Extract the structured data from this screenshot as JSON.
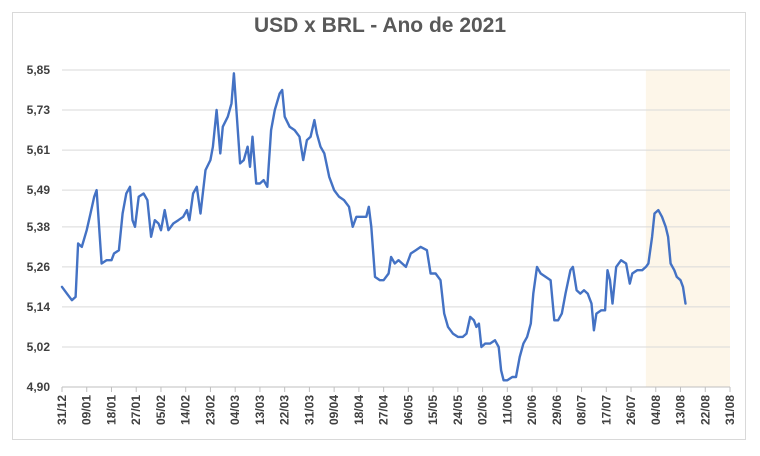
{
  "chart_data": {
    "type": "line",
    "title": "USD x BRL - Ano de 2021",
    "xlabel": "",
    "ylabel": "",
    "ylim": [
      4.9,
      5.85
    ],
    "yticks": [
      "4,90",
      "5,02",
      "5,14",
      "5,26",
      "5,38",
      "5,49",
      "5,61",
      "5,73",
      "5,85"
    ],
    "ytick_values": [
      4.9,
      5.02,
      5.14,
      5.26,
      5.38,
      5.49,
      5.61,
      5.73,
      5.85
    ],
    "xticks": [
      "31/12",
      "09/01",
      "18/01",
      "27/01",
      "05/02",
      "14/02",
      "23/02",
      "04/03",
      "13/03",
      "22/03",
      "31/03",
      "09/04",
      "18/04",
      "27/04",
      "06/05",
      "15/05",
      "24/05",
      "02/06",
      "11/06",
      "20/06",
      "29/06",
      "08/07",
      "17/07",
      "26/07",
      "04/08",
      "13/08",
      "22/08",
      "31/08"
    ],
    "grid": true,
    "highlight": {
      "from_tick_index": 23.6,
      "to_tick_index": 27,
      "color": "#fdf6e9"
    },
    "series": [
      {
        "color": "#4472c4",
        "points": [
          [
            0,
            5.2
          ],
          [
            0.2,
            5.18
          ],
          [
            0.4,
            5.16
          ],
          [
            0.55,
            5.17
          ],
          [
            0.65,
            5.33
          ],
          [
            0.8,
            5.32
          ],
          [
            1,
            5.37
          ],
          [
            1.15,
            5.42
          ],
          [
            1.3,
            5.47
          ],
          [
            1.4,
            5.49
          ],
          [
            1.5,
            5.38
          ],
          [
            1.6,
            5.27
          ],
          [
            1.8,
            5.28
          ],
          [
            2,
            5.28
          ],
          [
            2.1,
            5.3
          ],
          [
            2.3,
            5.31
          ],
          [
            2.45,
            5.42
          ],
          [
            2.6,
            5.48
          ],
          [
            2.75,
            5.5
          ],
          [
            2.85,
            5.4
          ],
          [
            2.95,
            5.38
          ],
          [
            3.1,
            5.47
          ],
          [
            3.3,
            5.48
          ],
          [
            3.45,
            5.46
          ],
          [
            3.6,
            5.35
          ],
          [
            3.75,
            5.4
          ],
          [
            3.9,
            5.39
          ],
          [
            4,
            5.37
          ],
          [
            4.15,
            5.43
          ],
          [
            4.3,
            5.37
          ],
          [
            4.5,
            5.39
          ],
          [
            4.7,
            5.4
          ],
          [
            4.9,
            5.41
          ],
          [
            5.05,
            5.43
          ],
          [
            5.15,
            5.4
          ],
          [
            5.3,
            5.48
          ],
          [
            5.45,
            5.5
          ],
          [
            5.6,
            5.42
          ],
          [
            5.8,
            5.55
          ],
          [
            6.0,
            5.58
          ],
          [
            6.1,
            5.62
          ],
          [
            6.25,
            5.73
          ],
          [
            6.4,
            5.6
          ],
          [
            6.5,
            5.68
          ],
          [
            6.7,
            5.71
          ],
          [
            6.85,
            5.75
          ],
          [
            6.95,
            5.84
          ],
          [
            7.05,
            5.73
          ],
          [
            7.2,
            5.57
          ],
          [
            7.35,
            5.58
          ],
          [
            7.5,
            5.62
          ],
          [
            7.6,
            5.56
          ],
          [
            7.7,
            5.65
          ],
          [
            7.85,
            5.51
          ],
          [
            8.0,
            5.51
          ],
          [
            8.15,
            5.52
          ],
          [
            8.3,
            5.5
          ],
          [
            8.45,
            5.67
          ],
          [
            8.6,
            5.73
          ],
          [
            8.8,
            5.78
          ],
          [
            8.9,
            5.79
          ],
          [
            9.0,
            5.71
          ],
          [
            9.2,
            5.68
          ],
          [
            9.4,
            5.67
          ],
          [
            9.6,
            5.65
          ],
          [
            9.75,
            5.58
          ],
          [
            9.9,
            5.64
          ],
          [
            10.05,
            5.65
          ],
          [
            10.2,
            5.7
          ],
          [
            10.3,
            5.66
          ],
          [
            10.45,
            5.62
          ],
          [
            10.6,
            5.6
          ],
          [
            10.8,
            5.53
          ],
          [
            11.0,
            5.49
          ],
          [
            11.2,
            5.47
          ],
          [
            11.4,
            5.46
          ],
          [
            11.6,
            5.44
          ],
          [
            11.75,
            5.38
          ],
          [
            11.9,
            5.41
          ],
          [
            12.1,
            5.41
          ],
          [
            12.3,
            5.41
          ],
          [
            12.4,
            5.44
          ],
          [
            12.5,
            5.38
          ],
          [
            12.65,
            5.23
          ],
          [
            12.85,
            5.22
          ],
          [
            13.0,
            5.22
          ],
          [
            13.2,
            5.24
          ],
          [
            13.3,
            5.29
          ],
          [
            13.45,
            5.27
          ],
          [
            13.6,
            5.28
          ],
          [
            13.75,
            5.27
          ],
          [
            13.9,
            5.26
          ],
          [
            14.1,
            5.3
          ],
          [
            14.3,
            5.31
          ],
          [
            14.5,
            5.32
          ],
          [
            14.75,
            5.31
          ],
          [
            14.9,
            5.24
          ],
          [
            15.1,
            5.24
          ],
          [
            15.3,
            5.22
          ],
          [
            15.45,
            5.12
          ],
          [
            15.6,
            5.08
          ],
          [
            15.8,
            5.06
          ],
          [
            16.0,
            5.05
          ],
          [
            16.2,
            5.05
          ],
          [
            16.35,
            5.06
          ],
          [
            16.5,
            5.11
          ],
          [
            16.65,
            5.1
          ],
          [
            16.75,
            5.08
          ],
          [
            16.85,
            5.09
          ],
          [
            16.95,
            5.02
          ],
          [
            17.1,
            5.03
          ],
          [
            17.3,
            5.03
          ],
          [
            17.5,
            5.04
          ],
          [
            17.65,
            5.02
          ],
          [
            17.75,
            4.95
          ],
          [
            17.85,
            4.92
          ],
          [
            18.0,
            4.92
          ],
          [
            18.2,
            4.93
          ],
          [
            18.35,
            4.93
          ],
          [
            18.5,
            4.99
          ],
          [
            18.65,
            5.03
          ],
          [
            18.8,
            5.05
          ],
          [
            18.95,
            5.09
          ],
          [
            19.05,
            5.18
          ],
          [
            19.2,
            5.26
          ],
          [
            19.35,
            5.24
          ],
          [
            19.55,
            5.23
          ],
          [
            19.75,
            5.22
          ],
          [
            19.9,
            5.1
          ],
          [
            20.05,
            5.1
          ],
          [
            20.2,
            5.12
          ],
          [
            20.35,
            5.18
          ],
          [
            20.55,
            5.25
          ],
          [
            20.65,
            5.26
          ],
          [
            20.8,
            5.19
          ],
          [
            20.95,
            5.18
          ],
          [
            21.1,
            5.19
          ],
          [
            21.25,
            5.18
          ],
          [
            21.4,
            5.15
          ],
          [
            21.5,
            5.07
          ],
          [
            21.6,
            5.12
          ],
          [
            21.8,
            5.13
          ],
          [
            21.95,
            5.13
          ],
          [
            22.05,
            5.25
          ],
          [
            22.15,
            5.22
          ],
          [
            22.25,
            5.15
          ],
          [
            22.4,
            5.26
          ],
          [
            22.6,
            5.28
          ],
          [
            22.8,
            5.27
          ],
          [
            22.95,
            5.21
          ],
          [
            23.05,
            5.24
          ],
          [
            23.25,
            5.25
          ],
          [
            23.45,
            5.25
          ],
          [
            23.6,
            5.26
          ],
          [
            23.7,
            5.27
          ],
          [
            23.85,
            5.35
          ],
          [
            23.95,
            5.42
          ],
          [
            24.1,
            5.43
          ],
          [
            24.25,
            5.41
          ],
          [
            24.4,
            5.38
          ],
          [
            24.5,
            5.35
          ],
          [
            24.6,
            5.27
          ],
          [
            24.75,
            5.25
          ],
          [
            24.85,
            5.23
          ],
          [
            25.0,
            5.22
          ],
          [
            25.1,
            5.2
          ],
          [
            25.2,
            5.15
          ]
        ]
      }
    ]
  }
}
